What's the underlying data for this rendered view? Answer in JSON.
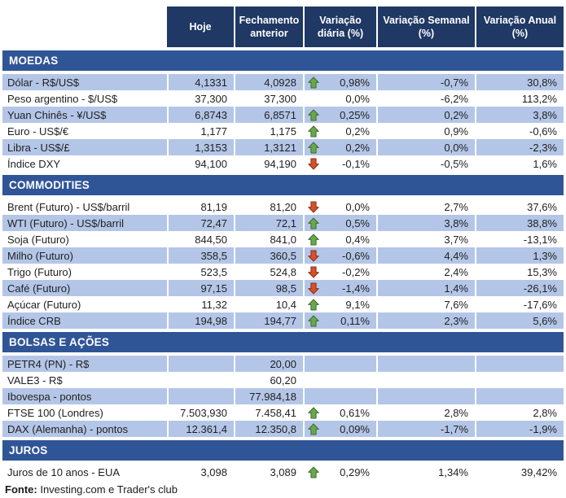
{
  "table": {
    "columns": [
      "Hoje",
      "Fechamento anterior",
      "Variação diária (%)",
      "Variação Semanal (%)",
      "Variação Anual (%)"
    ],
    "sections": [
      {
        "title": "MOEDAS",
        "rows": [
          {
            "label": "Dólar - R$/US$",
            "hoje": "4,1331",
            "fechamento": "4,0928",
            "arrow": "up",
            "var_diaria": "0,98%",
            "var_semanal": "-0,7%",
            "var_anual": "30,8%"
          },
          {
            "label": "Peso argentino - $/US$",
            "hoje": "37,300",
            "fechamento": "37,300",
            "arrow": "none",
            "var_diaria": "0,0%",
            "var_semanal": "-6,2%",
            "var_anual": "113,2%"
          },
          {
            "label": "Yuan Chinês - ¥/US$",
            "hoje": "6,8743",
            "fechamento": "6,8571",
            "arrow": "up",
            "var_diaria": "0,25%",
            "var_semanal": "0,2%",
            "var_anual": "3,8%"
          },
          {
            "label": "Euro - US$/€",
            "hoje": "1,177",
            "fechamento": "1,175",
            "arrow": "up",
            "var_diaria": "0,2%",
            "var_semanal": "0,9%",
            "var_anual": "-0,6%"
          },
          {
            "label": "Libra - US$/£",
            "hoje": "1,3153",
            "fechamento": "1,3121",
            "arrow": "up",
            "var_diaria": "0,2%",
            "var_semanal": "0,0%",
            "var_anual": "-2,3%"
          },
          {
            "label": "Índice DXY",
            "hoje": "94,100",
            "fechamento": "94,190",
            "arrow": "down",
            "var_diaria": "-0,1%",
            "var_semanal": "-0,5%",
            "var_anual": "1,6%"
          }
        ]
      },
      {
        "title": "COMMODITIES",
        "rows": [
          {
            "label": "Brent (Futuro) - US$/barril",
            "hoje": "81,19",
            "fechamento": "81,20",
            "arrow": "down",
            "var_diaria": "0,0%",
            "var_semanal": "2,7%",
            "var_anual": "37,6%"
          },
          {
            "label": "WTI (Futuro) - US$/barril",
            "hoje": "72,47",
            "fechamento": "72,1",
            "arrow": "up",
            "var_diaria": "0,5%",
            "var_semanal": "3,8%",
            "var_anual": "38,8%"
          },
          {
            "label": "Soja (Futuro)",
            "hoje": "844,50",
            "fechamento": "841,0",
            "arrow": "up",
            "var_diaria": "0,4%",
            "var_semanal": "3,7%",
            "var_anual": "-13,1%"
          },
          {
            "label": "Milho (Futuro)",
            "hoje": "358,5",
            "fechamento": "360,5",
            "arrow": "down",
            "var_diaria": "-0,6%",
            "var_semanal": "4,4%",
            "var_anual": "1,3%"
          },
          {
            "label": "Trigo (Futuro)",
            "hoje": "523,5",
            "fechamento": "524,8",
            "arrow": "down",
            "var_diaria": "-0,2%",
            "var_semanal": "2,4%",
            "var_anual": "15,3%"
          },
          {
            "label": "Café (Futuro)",
            "hoje": "97,15",
            "fechamento": "98,5",
            "arrow": "down",
            "var_diaria": "-1,4%",
            "var_semanal": "1,4%",
            "var_anual": "-26,1%"
          },
          {
            "label": "Açúcar (Futuro)",
            "hoje": "11,32",
            "fechamento": "10,4",
            "arrow": "up",
            "var_diaria": "9,1%",
            "var_semanal": "7,6%",
            "var_anual": "-17,6%"
          },
          {
            "label": "Índice CRB",
            "hoje": "194,98",
            "fechamento": "194,77",
            "arrow": "up",
            "var_diaria": "0,11%",
            "var_semanal": "2,3%",
            "var_anual": "5,6%"
          }
        ]
      },
      {
        "title": "BOLSAS E AÇÕES",
        "rows": [
          {
            "label": "PETR4 (PN) - R$",
            "hoje": "",
            "fechamento": "20,00",
            "arrow": "none",
            "var_diaria": "",
            "var_semanal": "",
            "var_anual": ""
          },
          {
            "label": "VALE3 - R$",
            "hoje": "",
            "fechamento": "60,20",
            "arrow": "none",
            "var_diaria": "",
            "var_semanal": "",
            "var_anual": ""
          },
          {
            "label": "Ibovespa - pontos",
            "hoje": "",
            "fechamento": "77.984,18",
            "arrow": "none",
            "var_diaria": "",
            "var_semanal": "",
            "var_anual": ""
          },
          {
            "label": "FTSE 100 (Londres)",
            "hoje": "7.503,930",
            "fechamento": "7.458,41",
            "arrow": "up",
            "var_diaria": "0,61%",
            "var_semanal": "2,8%",
            "var_anual": "2,8%"
          },
          {
            "label": "DAX (Alemanha) - pontos",
            "hoje": "12.361,4",
            "fechamento": "12.350,8",
            "arrow": "up",
            "var_diaria": "0,09%",
            "var_semanal": "-1,7%",
            "var_anual": "-1,9%"
          }
        ]
      },
      {
        "title": "JUROS",
        "rows": [
          {
            "label": "Juros de 10 anos - EUA",
            "hoje": "3,098",
            "fechamento": "3,089",
            "arrow": "up",
            "var_diaria": "0,29%",
            "var_semanal": "1,34%",
            "var_anual": "39,42%"
          }
        ]
      }
    ]
  },
  "footer": {
    "label": "Fonte:",
    "text": " Investing.com e Trader's club"
  },
  "colors": {
    "header_bg": "#1F3864",
    "section_bg": "#2F5597",
    "row_shaded": "#B4C6E7",
    "arrow_up": "#69A74E",
    "arrow_up_border": "#3E6B2E",
    "arrow_down": "#D5502B",
    "arrow_down_border": "#8C2F14"
  }
}
